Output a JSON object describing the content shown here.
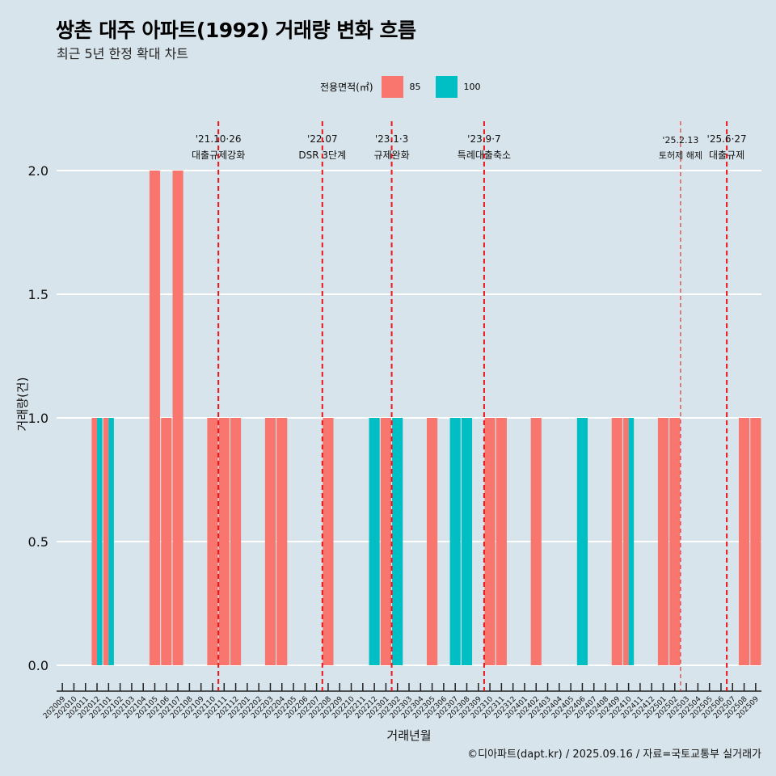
{
  "title": "쌍촌 대주 아파트(1992) 거래량 변화 흐름",
  "subtitle": "최근 5년 한정 확대 차트",
  "caption": "©디아파트(dapt.kr) / 2025.09.16 / 자료=국토교통부 실거래가",
  "colors": {
    "s85": "#f8766d",
    "s100": "#00bfc4",
    "grid": "#ffffff",
    "vline": "#e8161a"
  },
  "chart_data": {
    "type": "bar",
    "xlabel": "거래년월",
    "ylabel": "거래량(건)",
    "ylim": [
      0,
      2
    ],
    "yticks": [
      "0.0",
      "0.5",
      "1.0",
      "1.5",
      "2.0"
    ],
    "grid": true,
    "legend_title": "전용면적(㎡)",
    "legend_position": "top",
    "categories": [
      "202009",
      "202010",
      "202011",
      "202012",
      "202101",
      "202102",
      "202103",
      "202104",
      "202105",
      "202106",
      "202107",
      "202108",
      "202109",
      "202110",
      "202111",
      "202112",
      "202201",
      "202202",
      "202203",
      "202204",
      "202205",
      "202206",
      "202207",
      "202208",
      "202209",
      "202210",
      "202211",
      "202212",
      "202301",
      "202302",
      "202303",
      "202304",
      "202305",
      "202306",
      "202307",
      "202308",
      "202309",
      "202310",
      "202311",
      "202312",
      "202401",
      "202402",
      "202403",
      "202404",
      "202405",
      "202406",
      "202407",
      "202408",
      "202409",
      "202410",
      "202411",
      "202412",
      "202501",
      "202502",
      "202503",
      "202504",
      "202505",
      "202506",
      "202507",
      "202508",
      "202509"
    ],
    "series": [
      {
        "name": "85",
        "values": [
          0,
          0,
          0,
          1,
          1,
          0,
          0,
          0,
          2,
          1,
          2,
          0,
          0,
          1,
          1,
          1,
          0,
          0,
          1,
          1,
          0,
          0,
          0,
          1,
          0,
          0,
          0,
          0,
          1,
          0,
          0,
          0,
          1,
          0,
          0,
          0,
          0,
          1,
          1,
          0,
          0,
          1,
          0,
          0,
          0,
          0,
          0,
          0,
          1,
          1,
          0,
          0,
          1,
          1,
          0,
          0,
          0,
          0,
          0,
          1,
          1
        ]
      },
      {
        "name": "100",
        "values": [
          0,
          0,
          0,
          1,
          1,
          0,
          0,
          0,
          0,
          0,
          0,
          0,
          0,
          0,
          0,
          0,
          0,
          0,
          0,
          0,
          0,
          0,
          0,
          0,
          0,
          0,
          0,
          1,
          0,
          1,
          0,
          0,
          0,
          0,
          1,
          1,
          0,
          0,
          0,
          0,
          0,
          0,
          0,
          0,
          0,
          1,
          0,
          0,
          0,
          1,
          0,
          0,
          0,
          0,
          0,
          0,
          0,
          0,
          0,
          0,
          0
        ]
      }
    ],
    "annotations": [
      {
        "after": "202110",
        "line1": "'21.10·26",
        "line2": "대출규제강화",
        "style": "thick"
      },
      {
        "after": "202207",
        "line1": "'22.07",
        "line2": "DSR 3단계",
        "style": "thick"
      },
      {
        "after": "202301",
        "line1": "'23.1·3",
        "line2": "규제완화",
        "style": "thick"
      },
      {
        "after": "202309",
        "line1": "'23.9·7",
        "line2": "특례대출축소",
        "style": "thick"
      },
      {
        "after": "202502",
        "line1": "'25.2.13",
        "line2": "토허제 해제",
        "style": "thin"
      },
      {
        "after": "202506",
        "line1": "'25.6·27",
        "line2": "대출규제",
        "style": "thick"
      }
    ]
  }
}
